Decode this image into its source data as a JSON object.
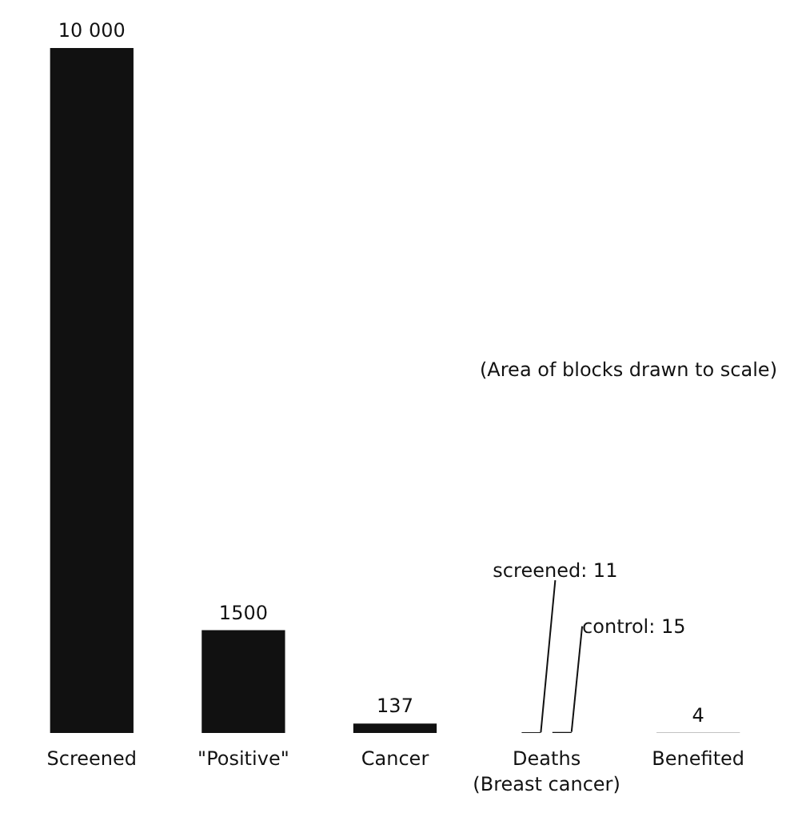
{
  "chart_data": {
    "type": "bar",
    "tick_labels": "x",
    "categories": [
      "Screened",
      "\"Positive\"",
      "Cancer",
      "Deaths\n(Breast cancer)",
      "Benefited"
    ],
    "series": [
      {
        "color": "#111111",
        "values": [
          10000,
          1500,
          137,
          null,
          4
        ],
        "value_labels": [
          "10 000",
          "1500",
          "137",
          null,
          "4"
        ]
      },
      {
        "color": "#111111",
        "values": [
          null,
          null,
          null,
          11,
          null
        ],
        "value_labels": [
          null,
          null,
          null,
          "screened: 11",
          null
        ]
      },
      {
        "color": "#111111",
        "values": [
          null,
          null,
          null,
          15,
          null
        ],
        "value_labels": [
          null,
          null,
          null,
          "control: 15",
          null
        ]
      }
    ],
    "annotations": [
      "(Area of blocks drawn to scale)"
    ]
  }
}
